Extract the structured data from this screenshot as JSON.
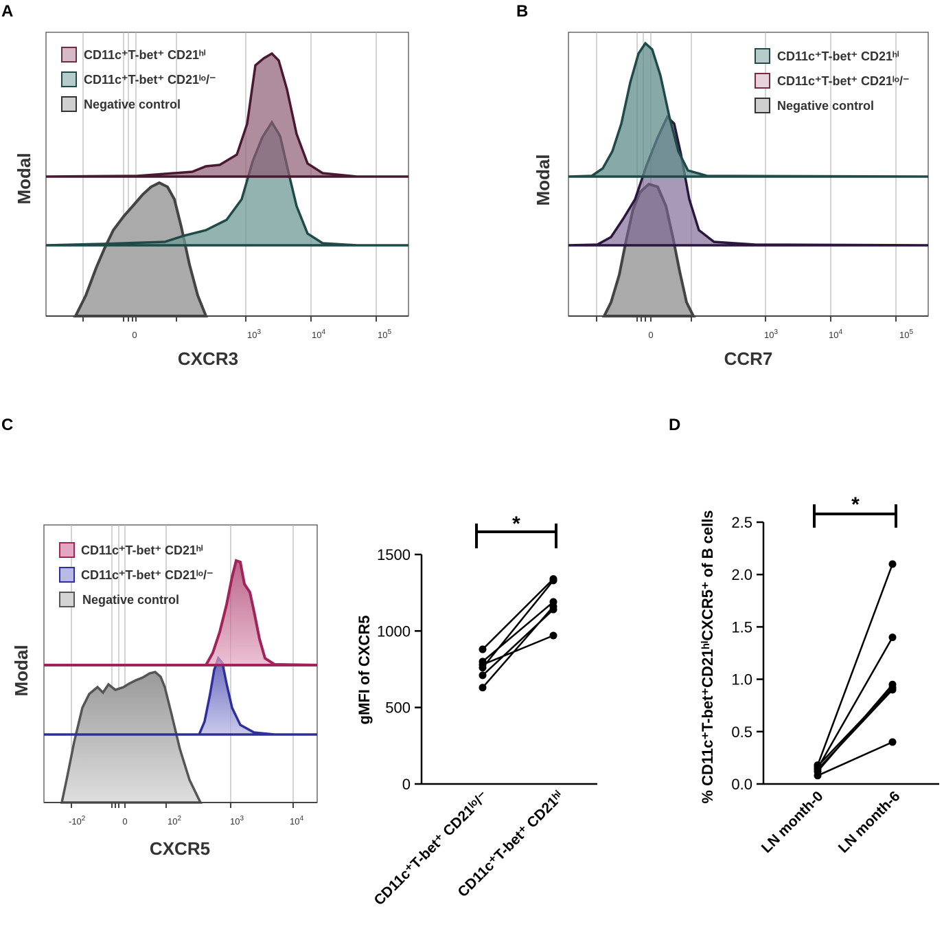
{
  "chart_data": [
    {
      "panel": "A",
      "type": "area",
      "xlabel": "CXCR3",
      "ylabel": "Modal",
      "x_ticks": [
        "0",
        "10^3",
        "10^4",
        "10^5"
      ],
      "legend": [
        {
          "name": "CD11c+T-bet+ CD21hi",
          "color": "#6b2d4a"
        },
        {
          "name": "CD11c+T-bet+ CD21lo/-",
          "color": "#1f4a48"
        },
        {
          "name": "Negative control",
          "color": "#333333"
        }
      ]
    },
    {
      "panel": "B",
      "type": "area",
      "xlabel": "CCR7",
      "ylabel": "Modal",
      "x_ticks": [
        "0",
        "10^3",
        "10^4",
        "10^5"
      ],
      "legend": [
        {
          "name": "CD11c+T-bet+ CD21hi",
          "color": "#1f4a48"
        },
        {
          "name": "CD11c+T-bet+ CD21lo/-",
          "color": "#7a2a44"
        },
        {
          "name": "Negative control",
          "color": "#333333"
        }
      ]
    },
    {
      "panel": "C",
      "type": "area",
      "xlabel": "CXCR5",
      "ylabel": "Modal",
      "x_ticks": [
        "-10^2",
        "0",
        "10^2",
        "10^3",
        "10^4"
      ],
      "legend": [
        {
          "name": "CD11c+T-bet+ CD21hi",
          "color": "#a0245a"
        },
        {
          "name": "CD11c+T-bet+ CD21lo/-",
          "color": "#2e2f9a"
        },
        {
          "name": "Negative control",
          "color": "#555555"
        }
      ]
    },
    {
      "panel": "C",
      "type": "scatter",
      "title": "",
      "ylabel": "gMFI of CXCR5",
      "categories": [
        "CD11c+T-bet+ CD21lo/-",
        "CD11c+T-bet+ CD21hi"
      ],
      "ylim": [
        0,
        1500
      ],
      "yticks": [
        0,
        500,
        1000,
        1500
      ],
      "pairs": [
        [
          880,
          1340
        ],
        [
          800,
          1190
        ],
        [
          760,
          1330
        ],
        [
          710,
          1140
        ],
        [
          630,
          1160
        ],
        [
          780,
          970
        ]
      ],
      "significance": "*"
    },
    {
      "panel": "D",
      "type": "scatter",
      "title": "",
      "ylabel": "% CD11c+T-bet+CD21hiCXCR5+ of B cells",
      "categories": [
        "LN month-0",
        "LN month-6"
      ],
      "ylim": [
        0,
        2.5
      ],
      "yticks": [
        0.0,
        0.5,
        1.0,
        1.5,
        2.0,
        2.5
      ],
      "pairs": [
        [
          0.18,
          2.1
        ],
        [
          0.15,
          1.4
        ],
        [
          0.12,
          0.95
        ],
        [
          0.17,
          0.92
        ],
        [
          0.14,
          0.9
        ],
        [
          0.08,
          0.4
        ]
      ],
      "significance": "*"
    }
  ],
  "panels": {
    "a": {
      "letter": "A",
      "modal": "Modal",
      "xlabel": "CXCR3",
      "leg1": "CD11c⁺T-bet⁺ CD21ʰⁱ",
      "leg2": "CD11c⁺T-bet⁺ CD21ˡᵒ/⁻",
      "leg3": "Negative control",
      "t0": "0",
      "t3": "10",
      "t3e": "3",
      "t4": "10",
      "t4e": "4",
      "t5": "10",
      "t5e": "5"
    },
    "b": {
      "letter": "B",
      "modal": "Modal",
      "xlabel": "CCR7",
      "leg1": "CD11c⁺T-bet⁺ CD21ʰⁱ",
      "leg2": "CD11c⁺T-bet⁺ CD21ˡᵒ/⁻",
      "leg3": "Negative control",
      "t0": "0",
      "t3": "10",
      "t3e": "3",
      "t4": "10",
      "t4e": "4",
      "t5": "10",
      "t5e": "5"
    },
    "c": {
      "letter": "C",
      "modal": "Modal",
      "xlabel": "CXCR5",
      "leg1": "CD11c⁺T-bet⁺ CD21ʰⁱ",
      "leg2": "CD11c⁺T-bet⁺ CD21ˡᵒ/⁻",
      "leg3": "Negative control",
      "tm2": "-10",
      "tm2e": "2",
      "t0": "0",
      "t2": "10",
      "t2e": "2",
      "t3": "10",
      "t3e": "3",
      "t4": "10",
      "t4e": "4",
      "sc_ylabel": "gMFI of CXCR5",
      "cat1": "CD11c⁺T-bet⁺ CD21ˡᵒ/⁻",
      "cat2": "CD11c⁺T-bet⁺ CD21ʰⁱ",
      "star": "*"
    },
    "d": {
      "letter": "D",
      "ylabel": "% CD11c⁺T-bet⁺CD21ʰⁱCXCR5⁺ of B cells",
      "cat1": "LN month-0",
      "cat2": "LN month-6",
      "star": "*"
    }
  }
}
